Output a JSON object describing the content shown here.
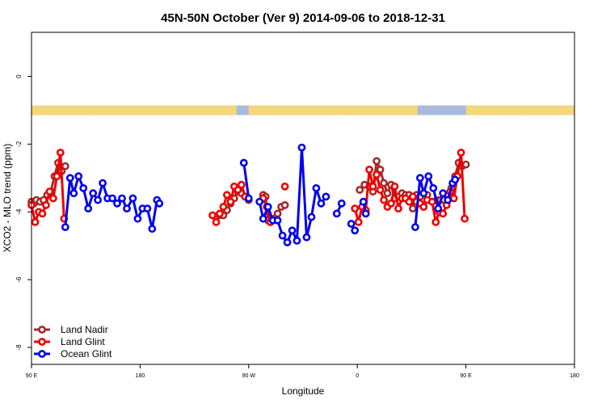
{
  "chart_data": {
    "type": "line",
    "title": "45N-50N October (Ver 9)   2014-09-06 to 2018-12-31",
    "xlabel": "Longitude",
    "ylabel": "XCO2 - MLO trend (ppm)",
    "xlim": [
      90,
      450
    ],
    "ylim": [
      -8.5,
      1.3
    ],
    "x_ticks": [
      {
        "value": 90,
        "label": "90 E"
      },
      {
        "value": 180,
        "label": "180"
      },
      {
        "value": 270,
        "label": "90 W"
      },
      {
        "value": 360,
        "label": "0"
      },
      {
        "value": 450,
        "label": "90 E"
      },
      {
        "value": 540,
        "label": "180"
      }
    ],
    "y_ticks": [
      {
        "value": 0,
        "label": "0"
      },
      {
        "value": -2,
        "label": "-2"
      },
      {
        "value": -4,
        "label": "-4"
      },
      {
        "value": -6,
        "label": "-6"
      },
      {
        "value": -8,
        "label": "-8"
      }
    ],
    "legend_position": "bottom-left",
    "land_strip_y": -1,
    "colors": {
      "land": "#f5d77a",
      "ocean": "#a9bbdd"
    },
    "land_segments": [
      [
        90,
        142
      ],
      [
        140,
        260
      ],
      [
        270,
        350
      ],
      [
        350,
        410
      ],
      [
        450,
        502
      ],
      [
        500,
        540
      ]
    ],
    "series": [
      {
        "name": "Land Nadir",
        "color": "#a52a2a",
        "segments": [
          [
            [
              90,
              -3.7
            ],
            [
              92,
              -3.75
            ],
            [
              94,
              -3.65
            ],
            [
              97,
              -3.7
            ],
            [
              100,
              -3.65
            ],
            [
              103,
              -3.5
            ],
            [
              106,
              -3.4
            ],
            [
              109,
              -2.95
            ],
            [
              112,
              -2.55
            ],
            [
              115,
              -2.8
            ],
            [
              118,
              -2.65
            ]
          ],
          [
            [
              246,
              -4.1
            ],
            [
              249,
              -4.1
            ],
            [
              252,
              -3.95
            ],
            [
              255,
              -3.75
            ],
            [
              258,
              -3.6
            ],
            [
              261,
              -3.4
            ],
            [
              264,
              -3.45
            ],
            [
              267,
              -3.55
            ],
            [
              270,
              -3.65
            ]
          ],
          [
            [
              282,
              -3.5
            ],
            [
              284,
              -3.55
            ],
            [
              286,
              -4.25
            ],
            [
              288,
              -4.3
            ],
            [
              291,
              -4.2
            ],
            [
              294,
              -4.05
            ],
            [
              297,
              -3.85
            ],
            [
              300,
              -3.8
            ]
          ],
          [
            [
              362,
              -3.35
            ],
            [
              366,
              -3.2
            ],
            [
              370,
              -3.25
            ],
            [
              373,
              -3.4
            ],
            [
              376,
              -2.5
            ],
            [
              379,
              -2.75
            ],
            [
              382,
              -3.15
            ],
            [
              385,
              -3.45
            ],
            [
              388,
              -3.2
            ],
            [
              391,
              -3.6
            ],
            [
              394,
              -3.55
            ],
            [
              397,
              -3.45
            ],
            [
              400,
              -3.5
            ],
            [
              403,
              -3.5
            ],
            [
              406,
              -3.9
            ],
            [
              409,
              -3.5
            ],
            [
              412,
              -3.55
            ],
            [
              415,
              -3.85
            ],
            [
              418,
              -3.5
            ]
          ],
          [
            [
              426,
              -3.65
            ],
            [
              429,
              -3.65
            ],
            [
              432,
              -3.65
            ],
            [
              435,
              -3.5
            ],
            [
              438,
              -3.3
            ],
            [
              441,
              -2.95
            ],
            [
              444,
              -2.55
            ],
            [
              447,
              -2.65
            ],
            [
              450,
              -2.6
            ]
          ]
        ]
      },
      {
        "name": "Land Glint",
        "color": "#ee0000",
        "segments": [
          [
            [
              90,
              -3.8
            ],
            [
              93,
              -4.3
            ],
            [
              96,
              -4.0
            ],
            [
              99,
              -4.05
            ],
            [
              102,
              -3.8
            ],
            [
              105,
              -3.4
            ],
            [
              108,
              -3.6
            ],
            [
              111,
              -2.95
            ],
            [
              114,
              -2.25
            ],
            [
              117,
              -4.2
            ]
          ],
          [
            [
              240,
              -4.1
            ],
            [
              243,
              -4.3
            ],
            [
              246,
              -4.05
            ],
            [
              249,
              -3.85
            ],
            [
              252,
              -3.5
            ],
            [
              255,
              -3.7
            ],
            [
              258,
              -3.25
            ],
            [
              261,
              -3.35
            ],
            [
              264,
              -3.2
            ],
            [
              267,
              -3.55
            ]
          ],
          [
            [
              282,
              -3.6
            ],
            [
              285,
              -3.85
            ],
            [
              288,
              -4.3
            ]
          ],
          [
            [
              300,
              -3.25
            ]
          ],
          [
            [
              358,
              -3.9
            ],
            [
              361,
              -4.3
            ],
            [
              364,
              -3.85
            ],
            [
              367,
              -3.95
            ],
            [
              370,
              -2.75
            ],
            [
              373,
              -3.25
            ],
            [
              376,
              -2.9
            ],
            [
              379,
              -3.35
            ],
            [
              382,
              -3.65
            ],
            [
              385,
              -3.85
            ],
            [
              388,
              -3.75
            ],
            [
              391,
              -3.25
            ],
            [
              394,
              -3.9
            ],
            [
              397,
              -3.6
            ],
            [
              400,
              -3.6
            ],
            [
              403,
              -3.7
            ],
            [
              406,
              -3.55
            ],
            [
              409,
              -3.7
            ],
            [
              412,
              -3.75
            ],
            [
              415,
              -3.85
            ],
            [
              418,
              -3.65
            ]
          ],
          [
            [
              422,
              -3.7
            ],
            [
              425,
              -4.3
            ],
            [
              428,
              -4.0
            ],
            [
              431,
              -4.05
            ],
            [
              434,
              -3.8
            ],
            [
              437,
              -3.4
            ],
            [
              440,
              -3.6
            ],
            [
              443,
              -2.95
            ],
            [
              446,
              -2.25
            ],
            [
              449,
              -4.2
            ]
          ]
        ]
      },
      {
        "name": "Ocean Glint",
        "color": "#0000ee",
        "segments": [
          [
            [
              118,
              -4.45
            ],
            [
              122,
              -3.0
            ],
            [
              125,
              -3.45
            ],
            [
              129,
              -2.95
            ],
            [
              133,
              -3.3
            ],
            [
              137,
              -3.9
            ],
            [
              141,
              -3.45
            ],
            [
              145,
              -3.65
            ],
            [
              149,
              -3.15
            ],
            [
              153,
              -3.6
            ],
            [
              157,
              -3.6
            ],
            [
              161,
              -3.75
            ],
            [
              165,
              -3.6
            ],
            [
              169,
              -3.9
            ],
            [
              174,
              -3.6
            ],
            [
              178,
              -4.2
            ],
            [
              182,
              -3.9
            ],
            [
              186,
              -3.9
            ],
            [
              190,
              -4.5
            ],
            [
              194,
              -3.65
            ],
            [
              196,
              -3.75
            ]
          ],
          [
            [
              266,
              -2.55
            ],
            [
              270,
              -3.6
            ]
          ],
          [
            [
              279,
              -3.7
            ],
            [
              282,
              -4.2
            ],
            [
              286,
              -3.85
            ],
            [
              290,
              -4.25
            ],
            [
              294,
              -4.25
            ],
            [
              298,
              -4.7
            ],
            [
              302,
              -4.9
            ],
            [
              306,
              -4.55
            ],
            [
              310,
              -4.85
            ],
            [
              314,
              -2.1
            ],
            [
              318,
              -4.75
            ],
            [
              322,
              -4.15
            ],
            [
              326,
              -3.3
            ],
            [
              330,
              -3.75
            ],
            [
              334,
              -3.55
            ]
          ],
          [
            [
              343,
              -4.05
            ],
            [
              347,
              -3.75
            ]
          ],
          [
            [
              355,
              -4.35
            ],
            [
              358,
              -4.55
            ]
          ],
          [
            [
              365,
              -3.7
            ],
            [
              367,
              -4.05
            ]
          ],
          [
            [
              408,
              -4.45
            ],
            [
              412,
              -3.0
            ],
            [
              415,
              -3.45
            ],
            [
              419,
              -2.95
            ],
            [
              423,
              -3.3
            ],
            [
              427,
              -3.9
            ],
            [
              431,
              -3.45
            ],
            [
              435,
              -3.65
            ],
            [
              439,
              -3.15
            ],
            [
              441,
              -3.05
            ]
          ]
        ]
      }
    ]
  }
}
